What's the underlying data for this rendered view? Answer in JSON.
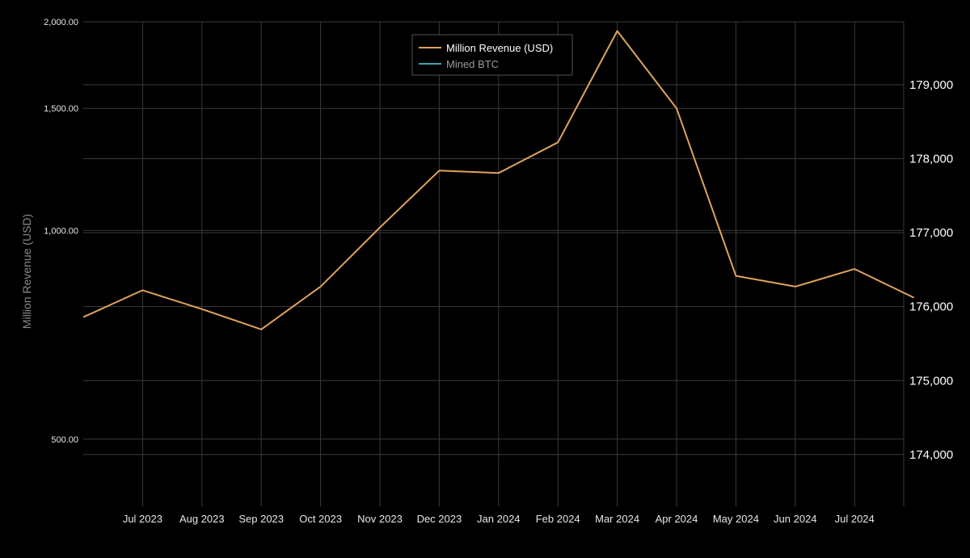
{
  "chart_data": {
    "type": "line",
    "ylabel": "Million Revenue (USD)",
    "y_scale": "log",
    "ylim": [
      400,
      2000
    ],
    "y2lim": [
      173300,
      179850
    ],
    "y_ticks": [
      "500.00",
      "1,000.00",
      "1,500.00",
      "2,000.00"
    ],
    "y2_ticks": [
      "174,000",
      "175,000",
      "176,000",
      "177,000",
      "178,000",
      "179,000"
    ],
    "x_ticks": [
      "Jul 2023",
      "Aug 2023",
      "Sep 2023",
      "Oct 2023",
      "Nov 2023",
      "Dec 2023",
      "Jan 2024",
      "Feb 2024",
      "Mar 2024",
      "Apr 2024",
      "May 2024",
      "Jun 2024",
      "Jul 2024"
    ],
    "grid": true,
    "legend_position": "top-center",
    "series": [
      {
        "name": "Million Revenue (USD)",
        "color": "#e0a35c",
        "axis": "left",
        "x": [
          "Jun 2023",
          "Jul 2023",
          "Aug 2023",
          "Sep 2023",
          "Oct 2023",
          "Nov 2023",
          "Dec 2023",
          "Jan 2024",
          "Feb 2024",
          "Mar 2024",
          "Apr 2024",
          "May 2024",
          "Jun 2024",
          "Jul 2024",
          "Aug 2024"
        ],
        "values": [
          750,
          820,
          770,
          720,
          830,
          1010,
          1220,
          1210,
          1340,
          1940,
          1500,
          860,
          830,
          880,
          800
        ]
      },
      {
        "name": "Mined BTC",
        "color": "#3aa6b0",
        "axis": "right",
        "values": []
      }
    ]
  }
}
